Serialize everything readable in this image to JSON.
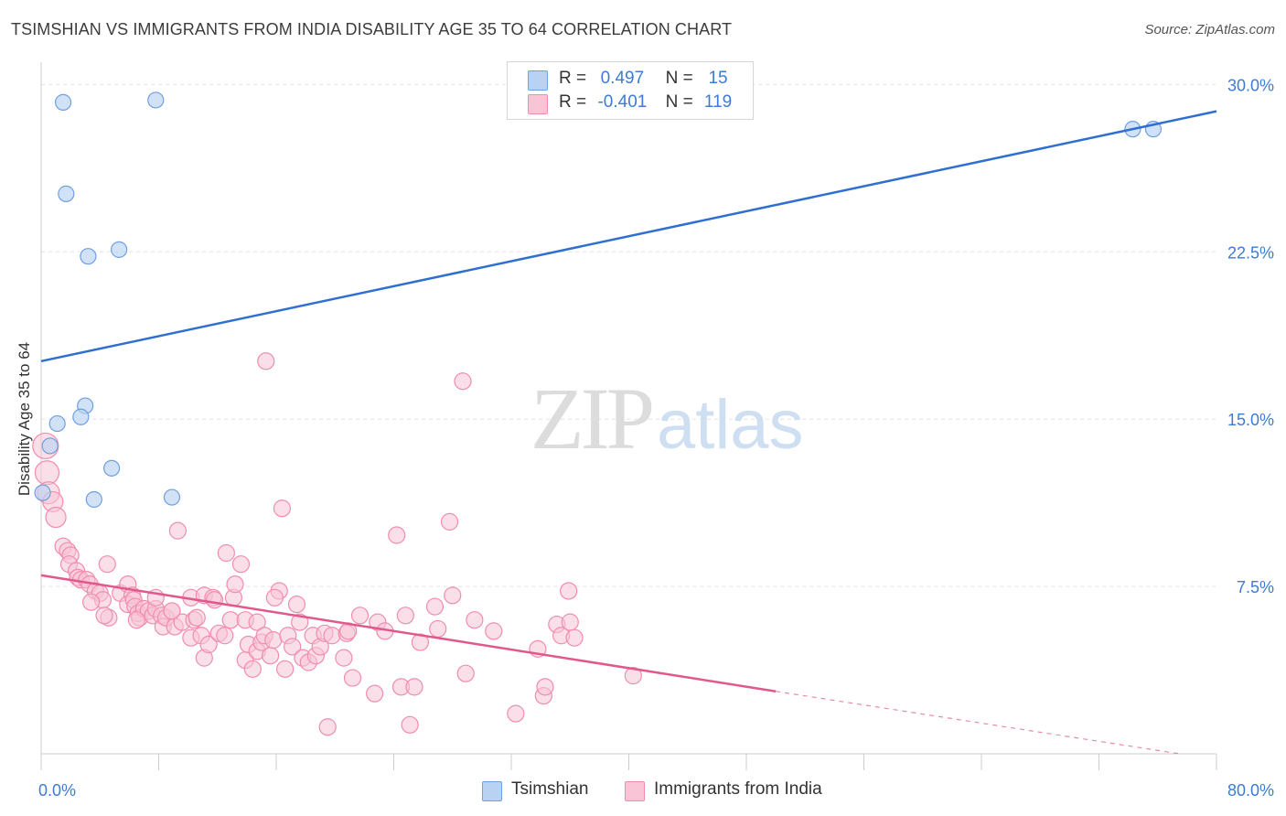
{
  "chart_data": {
    "type": "scatter",
    "title": "TSIMSHIAN VS IMMIGRANTS FROM INDIA DISABILITY AGE 35 TO 64 CORRELATION CHART",
    "source": "Source: ZipAtlas.com",
    "ylabel": "Disability Age 35 to 64",
    "xlabel": "",
    "xlim": [
      0,
      80
    ],
    "ylim": [
      0,
      31
    ],
    "x_tick_labels": [
      "0.0%",
      "80.0%"
    ],
    "y_ticks": [
      7.5,
      15.0,
      22.5,
      30.0
    ],
    "y_tick_labels": [
      "7.5%",
      "15.0%",
      "22.5%",
      "30.0%"
    ],
    "watermark": "ZIPatlas",
    "legend": {
      "tsimshian": {
        "r_label": "R =",
        "r_value": "0.497",
        "n_label": "N =",
        "n_value": "15"
      },
      "india": {
        "r_label": "R =",
        "r_value": "-0.401",
        "n_label": "N =",
        "n_value": "119"
      }
    },
    "series": [
      {
        "name": "Tsimshian",
        "color": "#6fa0e0",
        "fill": "#b9d2f3",
        "trend_color": "#2f6fcf",
        "trend": {
          "x0": 0,
          "y0": 17.6,
          "x1": 80,
          "y1": 28.8
        },
        "points": [
          [
            1.5,
            29.2
          ],
          [
            7.8,
            29.3
          ],
          [
            1.7,
            25.1
          ],
          [
            3.2,
            22.3
          ],
          [
            5.3,
            22.6
          ],
          [
            1.1,
            14.8
          ],
          [
            3.0,
            15.6
          ],
          [
            2.7,
            15.1
          ],
          [
            0.6,
            13.8
          ],
          [
            4.8,
            12.8
          ],
          [
            3.6,
            11.4
          ],
          [
            8.9,
            11.5
          ],
          [
            0.1,
            11.7
          ],
          [
            74.3,
            28.0
          ],
          [
            75.7,
            28.0
          ]
        ]
      },
      {
        "name": "Immigrants from India",
        "color": "#f08cb0",
        "fill": "#f8c4d6",
        "trend_color": "#e0588c",
        "trend": {
          "x0": 0,
          "y0": 8.0,
          "x1": 50,
          "y1": 2.8
        },
        "trend_dashed": {
          "x0": 50,
          "y0": 2.8,
          "x1": 77.5,
          "y1": 0.0
        },
        "points": [
          [
            0.3,
            13.8,
            14
          ],
          [
            0.4,
            12.6,
            13
          ],
          [
            0.5,
            11.7,
            12
          ],
          [
            0.8,
            11.3,
            11
          ],
          [
            1.0,
            10.6,
            11
          ],
          [
            1.5,
            9.3,
            9
          ],
          [
            1.8,
            9.1,
            9
          ],
          [
            2.0,
            8.9,
            9
          ],
          [
            1.9,
            8.5,
            9
          ],
          [
            2.4,
            8.2,
            9
          ],
          [
            2.5,
            7.9,
            9
          ],
          [
            2.7,
            7.8,
            9
          ],
          [
            3.1,
            7.8,
            9
          ],
          [
            3.3,
            7.6,
            9
          ],
          [
            3.7,
            7.3,
            9
          ],
          [
            4.0,
            7.2,
            9
          ],
          [
            4.2,
            6.9,
            9
          ],
          [
            3.4,
            6.8,
            9
          ],
          [
            4.6,
            6.1,
            9
          ],
          [
            4.3,
            6.2,
            9
          ],
          [
            4.5,
            8.5,
            9
          ],
          [
            5.4,
            7.2,
            9
          ],
          [
            5.9,
            7.6,
            9
          ],
          [
            6.2,
            7.1,
            9
          ],
          [
            5.9,
            6.7,
            9
          ],
          [
            6.3,
            6.9,
            9
          ],
          [
            6.4,
            6.6,
            9
          ],
          [
            6.6,
            6.3,
            9
          ],
          [
            6.7,
            6.1,
            9
          ],
          [
            7.0,
            6.5,
            9
          ],
          [
            7.3,
            6.4,
            9
          ],
          [
            7.6,
            6.2,
            9
          ],
          [
            7.8,
            6.5,
            9
          ],
          [
            7.8,
            7.0,
            9
          ],
          [
            8.2,
            6.2,
            9
          ],
          [
            8.3,
            5.7,
            9
          ],
          [
            8.5,
            6.1,
            9
          ],
          [
            8.9,
            6.4,
            9
          ],
          [
            9.1,
            5.7,
            9
          ],
          [
            9.3,
            10.0,
            9
          ],
          [
            9.6,
            5.9,
            9
          ],
          [
            10.2,
            5.2,
            9
          ],
          [
            10.2,
            7.0,
            9
          ],
          [
            10.4,
            6.0,
            9
          ],
          [
            10.6,
            6.1,
            9
          ],
          [
            10.9,
            5.3,
            9
          ],
          [
            11.1,
            7.1,
            9
          ],
          [
            11.1,
            4.3,
            9
          ],
          [
            11.4,
            4.9,
            9
          ],
          [
            11.7,
            7.0,
            9
          ],
          [
            11.8,
            6.9,
            9
          ],
          [
            12.1,
            5.4,
            9
          ],
          [
            12.5,
            5.3,
            9
          ],
          [
            12.6,
            9.0,
            9
          ],
          [
            12.9,
            6.0,
            9
          ],
          [
            13.1,
            7.0,
            9
          ],
          [
            13.2,
            7.6,
            9
          ],
          [
            13.6,
            8.5,
            9
          ],
          [
            13.9,
            6.0,
            9
          ],
          [
            13.9,
            4.2,
            9
          ],
          [
            14.1,
            4.9,
            9
          ],
          [
            14.4,
            3.8,
            9
          ],
          [
            14.7,
            5.9,
            9
          ],
          [
            14.7,
            4.6,
            9
          ],
          [
            15.0,
            5.0,
            9
          ],
          [
            15.2,
            5.3,
            9
          ],
          [
            15.3,
            17.6,
            9
          ],
          [
            15.6,
            4.4,
            9
          ],
          [
            15.8,
            5.1,
            9
          ],
          [
            16.2,
            7.3,
            9
          ],
          [
            16.4,
            11.0,
            9
          ],
          [
            16.6,
            3.8,
            9
          ],
          [
            16.8,
            5.3,
            9
          ],
          [
            17.1,
            4.8,
            9
          ],
          [
            17.4,
            6.7,
            9
          ],
          [
            17.6,
            5.9,
            9
          ],
          [
            17.8,
            4.3,
            9
          ],
          [
            18.2,
            4.1,
            9
          ],
          [
            18.5,
            5.3,
            9
          ],
          [
            18.7,
            4.4,
            9
          ],
          [
            19.0,
            4.8,
            9
          ],
          [
            19.3,
            5.4,
            9
          ],
          [
            19.5,
            1.2,
            9
          ],
          [
            19.8,
            5.3,
            9
          ],
          [
            20.6,
            4.3,
            9
          ],
          [
            20.8,
            5.4,
            9
          ],
          [
            20.9,
            5.5,
            9
          ],
          [
            21.2,
            3.4,
            9
          ],
          [
            21.7,
            6.2,
            9
          ],
          [
            22.7,
            2.7,
            9
          ],
          [
            22.9,
            5.9,
            9
          ],
          [
            23.4,
            5.5,
            9
          ],
          [
            24.2,
            9.8,
            9
          ],
          [
            24.5,
            3.0,
            9
          ],
          [
            24.8,
            6.2,
            9
          ],
          [
            25.1,
            1.3,
            9
          ],
          [
            25.4,
            3.0,
            9
          ],
          [
            25.8,
            5.0,
            9
          ],
          [
            26.8,
            6.6,
            9
          ],
          [
            27.0,
            5.6,
            9
          ],
          [
            27.8,
            10.4,
            9
          ],
          [
            28.0,
            7.1,
            9
          ],
          [
            28.7,
            16.7,
            9
          ],
          [
            28.9,
            3.6,
            9
          ],
          [
            29.5,
            6.0,
            9
          ],
          [
            30.8,
            5.5,
            9
          ],
          [
            32.3,
            1.8,
            9
          ],
          [
            33.8,
            4.7,
            9
          ],
          [
            34.2,
            2.6,
            9
          ],
          [
            34.3,
            3.0,
            9
          ],
          [
            35.1,
            5.8,
            9
          ],
          [
            35.4,
            5.3,
            9
          ],
          [
            35.9,
            7.3,
            9
          ],
          [
            36.3,
            5.2,
            9
          ],
          [
            36.0,
            5.9,
            9
          ],
          [
            40.3,
            3.5,
            9
          ],
          [
            15.9,
            7.0,
            9
          ],
          [
            8.9,
            6.4,
            9
          ],
          [
            6.5,
            6.0,
            9
          ]
        ]
      }
    ]
  },
  "bottom_legend": {
    "tsimshian_label": "Tsimshian",
    "india_label": "Immigrants from India"
  }
}
